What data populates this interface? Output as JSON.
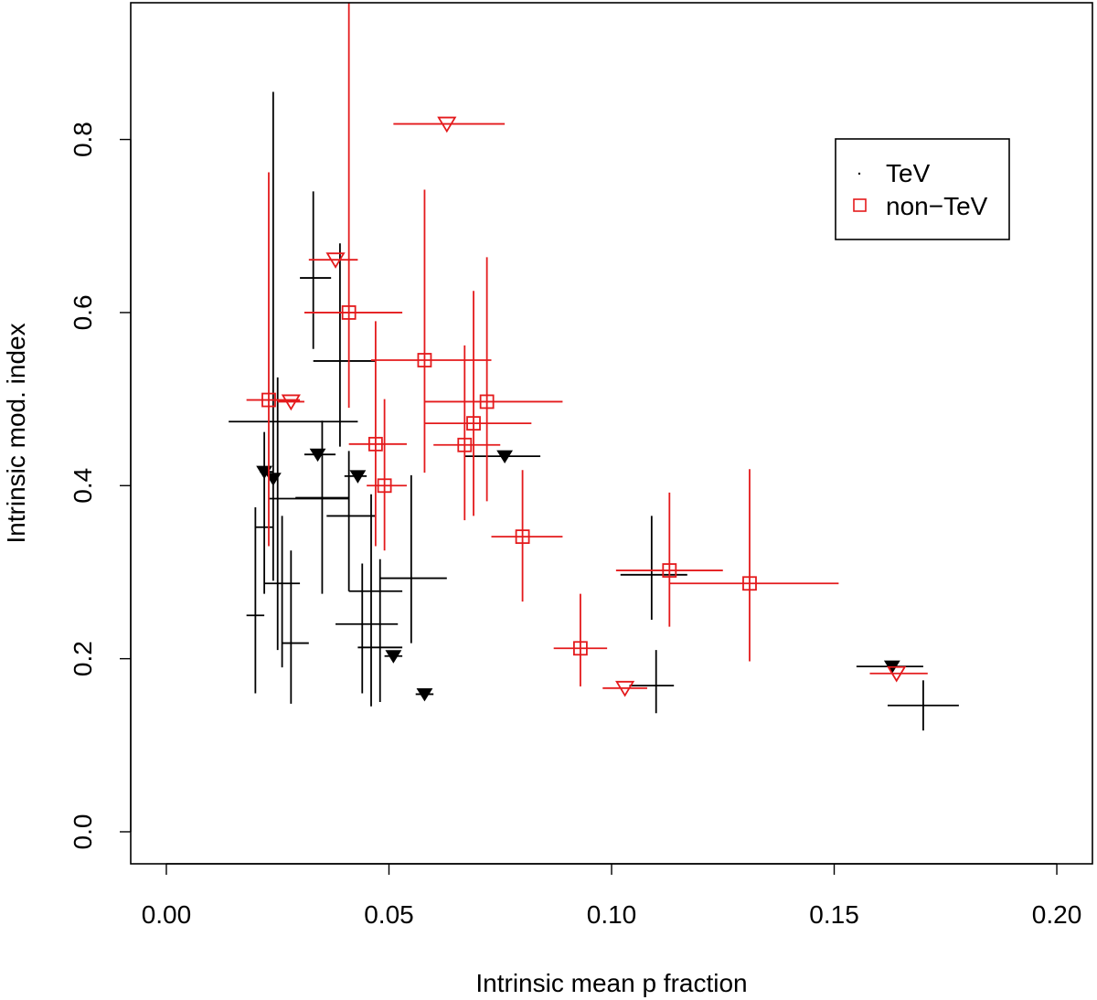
{
  "chart_data": {
    "type": "scatter",
    "title": "",
    "xlabel": "Intrinsic mean p fraction",
    "ylabel": "Intrinsic mod. index",
    "xlim": [
      -0.008,
      0.208
    ],
    "ylim": [
      -0.037,
      0.958
    ],
    "x_ticks": [
      0.0,
      0.05,
      0.1,
      0.15,
      0.2
    ],
    "x_tick_labels": [
      "0.00",
      "0.05",
      "0.10",
      "0.15",
      "0.20"
    ],
    "y_ticks": [
      0.0,
      0.2,
      0.4,
      0.6,
      0.8
    ],
    "y_tick_labels": [
      "0.0",
      "0.2",
      "0.4",
      "0.6",
      "0.8"
    ],
    "grid": false,
    "legend": {
      "position": "top-right",
      "entries": [
        {
          "label": "TeV",
          "color": "#000000",
          "marker": "dot"
        },
        {
          "label": "non−TeV",
          "color": "#e41a1c",
          "marker": "square"
        }
      ]
    },
    "series": [
      {
        "name": "TeV",
        "color": "#000000",
        "points": [
          {
            "x": 0.02,
            "y": 0.25,
            "xerr": [
              0.018,
              0.022
            ],
            "yerr": [
              0.16,
              0.375
            ],
            "marker": "dot"
          },
          {
            "x": 0.022,
            "y": 0.352,
            "xerr": [
              0.02,
              0.024
            ],
            "yerr": [
              0.275,
              0.462
            ],
            "marker": "dot"
          },
          {
            "x": 0.025,
            "y": 0.385,
            "xerr": [
              0.023,
              0.041
            ],
            "yerr": [
              0.21,
              0.525
            ],
            "marker": "dot"
          },
          {
            "x": 0.024,
            "y": 0.474,
            "xerr": [
              0.014,
              0.043
            ],
            "yerr": [
              0.29,
              0.855
            ],
            "marker": "dot"
          },
          {
            "x": 0.026,
            "y": 0.287,
            "xerr": [
              0.022,
              0.03
            ],
            "yerr": [
              0.19,
              0.365
            ],
            "marker": "dot"
          },
          {
            "x": 0.028,
            "y": 0.218,
            "xerr": [
              0.026,
              0.032
            ],
            "yerr": [
              0.148,
              0.325
            ],
            "marker": "dot"
          },
          {
            "x": 0.035,
            "y": 0.386,
            "xerr": [
              0.029,
              0.041
            ],
            "yerr": [
              0.275,
              0.475
            ],
            "marker": "dot"
          },
          {
            "x": 0.033,
            "y": 0.64,
            "xerr": [
              0.03,
              0.037
            ],
            "yerr": [
              0.558,
              0.74
            ],
            "marker": "dot"
          },
          {
            "x": 0.039,
            "y": 0.544,
            "xerr": [
              0.033,
              0.047
            ],
            "yerr": [
              0.445,
              0.68
            ],
            "marker": "dot"
          },
          {
            "x": 0.041,
            "y": 0.365,
            "xerr": [
              0.036,
              0.047
            ],
            "yerr": [
              0.278,
              0.44
            ],
            "marker": "dot"
          },
          {
            "x": 0.046,
            "y": 0.278,
            "xerr": [
              0.041,
              0.053
            ],
            "yerr": [
              0.145,
              0.39
            ],
            "marker": "dot"
          },
          {
            "x": 0.044,
            "y": 0.24,
            "xerr": [
              0.038,
              0.052
            ],
            "yerr": [
              0.16,
              0.31
            ],
            "marker": "dot"
          },
          {
            "x": 0.048,
            "y": 0.213,
            "xerr": [
              0.043,
              0.053
            ],
            "yerr": [
              0.15,
              0.315
            ],
            "marker": "dot"
          },
          {
            "x": 0.055,
            "y": 0.293,
            "xerr": [
              0.048,
              0.063
            ],
            "yerr": [
              0.218,
              0.412
            ],
            "marker": "dot"
          },
          {
            "x": 0.109,
            "y": 0.297,
            "xerr": [
              0.102,
              0.117
            ],
            "yerr": [
              0.245,
              0.365
            ],
            "marker": "dot"
          },
          {
            "x": 0.11,
            "y": 0.169,
            "xerr": [
              0.104,
              0.114
            ],
            "yerr": [
              0.137,
              0.21
            ],
            "marker": "dot"
          },
          {
            "x": 0.17,
            "y": 0.146,
            "xerr": [
              0.162,
              0.178
            ],
            "yerr": [
              0.117,
              0.175
            ],
            "marker": "dot"
          },
          {
            "x": 0.022,
            "y": 0.416,
            "xerr": [
              0.021,
              0.024
            ],
            "yerr": null,
            "marker": "triangle-down-filled"
          },
          {
            "x": 0.024,
            "y": 0.408,
            "xerr": [
              0.023,
              0.025
            ],
            "yerr": null,
            "marker": "triangle-down-filled"
          },
          {
            "x": 0.034,
            "y": 0.436,
            "xerr": [
              0.031,
              0.038
            ],
            "yerr": null,
            "marker": "triangle-down-filled"
          },
          {
            "x": 0.043,
            "y": 0.411,
            "xerr": [
              0.04,
              0.045
            ],
            "yerr": null,
            "marker": "triangle-down-filled"
          },
          {
            "x": 0.051,
            "y": 0.203,
            "xerr": [
              0.049,
              0.053
            ],
            "yerr": null,
            "marker": "triangle-down-filled"
          },
          {
            "x": 0.058,
            "y": 0.159,
            "xerr": [
              0.056,
              0.06
            ],
            "yerr": null,
            "marker": "triangle-down-filled"
          },
          {
            "x": 0.076,
            "y": 0.434,
            "xerr": [
              0.067,
              0.084
            ],
            "yerr": null,
            "marker": "triangle-down-filled"
          },
          {
            "x": 0.163,
            "y": 0.191,
            "xerr": [
              0.155,
              0.17
            ],
            "yerr": null,
            "marker": "triangle-down-filled"
          }
        ]
      },
      {
        "name": "non−TeV",
        "color": "#e41a1c",
        "points": [
          {
            "x": 0.023,
            "y": 0.499,
            "xerr": [
              0.018,
              0.03
            ],
            "yerr": [
              0.33,
              0.762
            ],
            "marker": "square"
          },
          {
            "x": 0.041,
            "y": 0.6,
            "xerr": [
              0.031,
              0.053
            ],
            "yerr": [
              0.49,
              0.958
            ],
            "marker": "square"
          },
          {
            "x": 0.047,
            "y": 0.448,
            "xerr": [
              0.041,
              0.054
            ],
            "yerr": [
              0.33,
              0.59
            ],
            "marker": "square"
          },
          {
            "x": 0.049,
            "y": 0.4,
            "xerr": [
              0.045,
              0.054
            ],
            "yerr": [
              0.325,
              0.5
            ],
            "marker": "square"
          },
          {
            "x": 0.058,
            "y": 0.545,
            "xerr": [
              0.046,
              0.073
            ],
            "yerr": [
              0.415,
              0.742
            ],
            "marker": "square"
          },
          {
            "x": 0.067,
            "y": 0.447,
            "xerr": [
              0.06,
              0.075
            ],
            "yerr": [
              0.36,
              0.562
            ],
            "marker": "square"
          },
          {
            "x": 0.069,
            "y": 0.472,
            "xerr": [
              0.058,
              0.082
            ],
            "yerr": [
              0.365,
              0.625
            ],
            "marker": "square"
          },
          {
            "x": 0.072,
            "y": 0.497,
            "xerr": [
              0.058,
              0.089
            ],
            "yerr": [
              0.382,
              0.664
            ],
            "marker": "square"
          },
          {
            "x": 0.08,
            "y": 0.341,
            "xerr": [
              0.073,
              0.089
            ],
            "yerr": [
              0.266,
              0.418
            ],
            "marker": "square"
          },
          {
            "x": 0.093,
            "y": 0.212,
            "xerr": [
              0.087,
              0.099
            ],
            "yerr": [
              0.168,
              0.275
            ],
            "marker": "square"
          },
          {
            "x": 0.113,
            "y": 0.302,
            "xerr": [
              0.101,
              0.125
            ],
            "yerr": [
              0.237,
              0.392
            ],
            "marker": "square"
          },
          {
            "x": 0.131,
            "y": 0.287,
            "xerr": [
              0.113,
              0.151
            ],
            "yerr": [
              0.197,
              0.419
            ],
            "marker": "square"
          },
          {
            "x": 0.028,
            "y": 0.497,
            "xerr": [
              0.025,
              0.031
            ],
            "yerr": null,
            "marker": "triangle-down-open"
          },
          {
            "x": 0.038,
            "y": 0.661,
            "xerr": [
              0.032,
              0.043
            ],
            "yerr": null,
            "marker": "triangle-down-open"
          },
          {
            "x": 0.063,
            "y": 0.818,
            "xerr": [
              0.051,
              0.076
            ],
            "yerr": null,
            "marker": "triangle-down-open"
          },
          {
            "x": 0.103,
            "y": 0.166,
            "xerr": [
              0.098,
              0.108
            ],
            "yerr": null,
            "marker": "triangle-down-open"
          },
          {
            "x": 0.164,
            "y": 0.183,
            "xerr": [
              0.158,
              0.171
            ],
            "yerr": null,
            "marker": "triangle-down-open"
          }
        ]
      }
    ]
  }
}
